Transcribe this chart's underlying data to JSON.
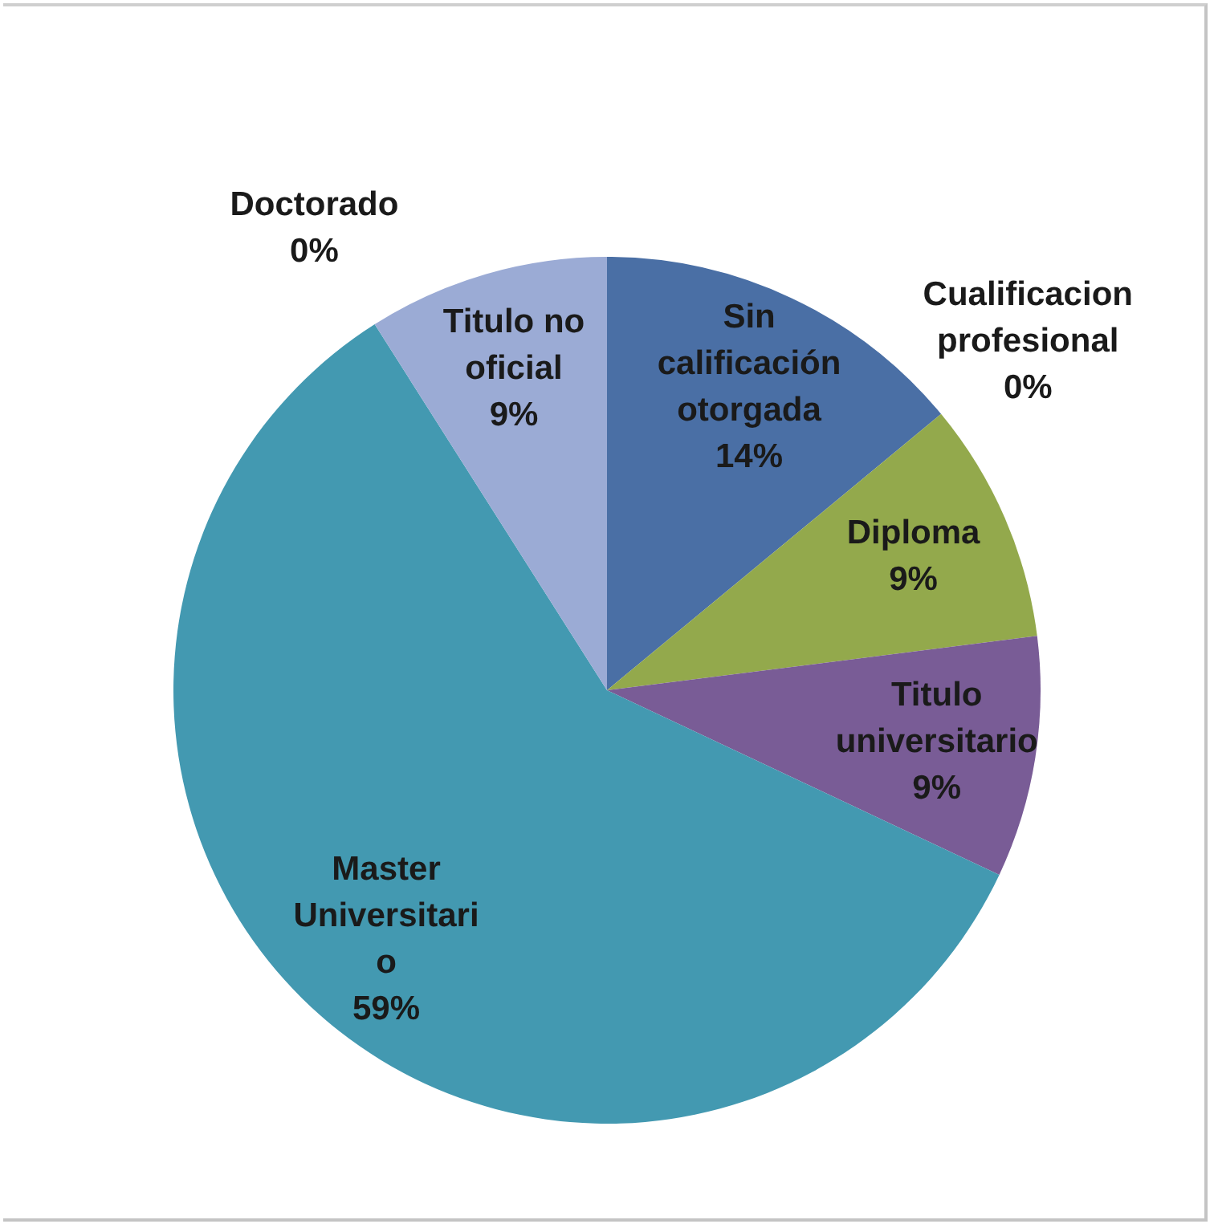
{
  "chart_data": {
    "type": "pie",
    "categories": [
      "Sin calificación otorgada",
      "Cualificacion profesional",
      "Diploma",
      "Titulo universitario",
      "Master Universitario",
      "Doctorado",
      "Titulo no oficial"
    ],
    "values": [
      14,
      0,
      9,
      9,
      59,
      0,
      9
    ],
    "colors": [
      "#4a6fa5",
      "#c0504d",
      "#93a94c",
      "#795c96",
      "#4399b1",
      "#f79646",
      "#9babd5"
    ],
    "value_labels": [
      "14%",
      "0%",
      "9%",
      "9%",
      "59%",
      "0%",
      "9%"
    ]
  }
}
